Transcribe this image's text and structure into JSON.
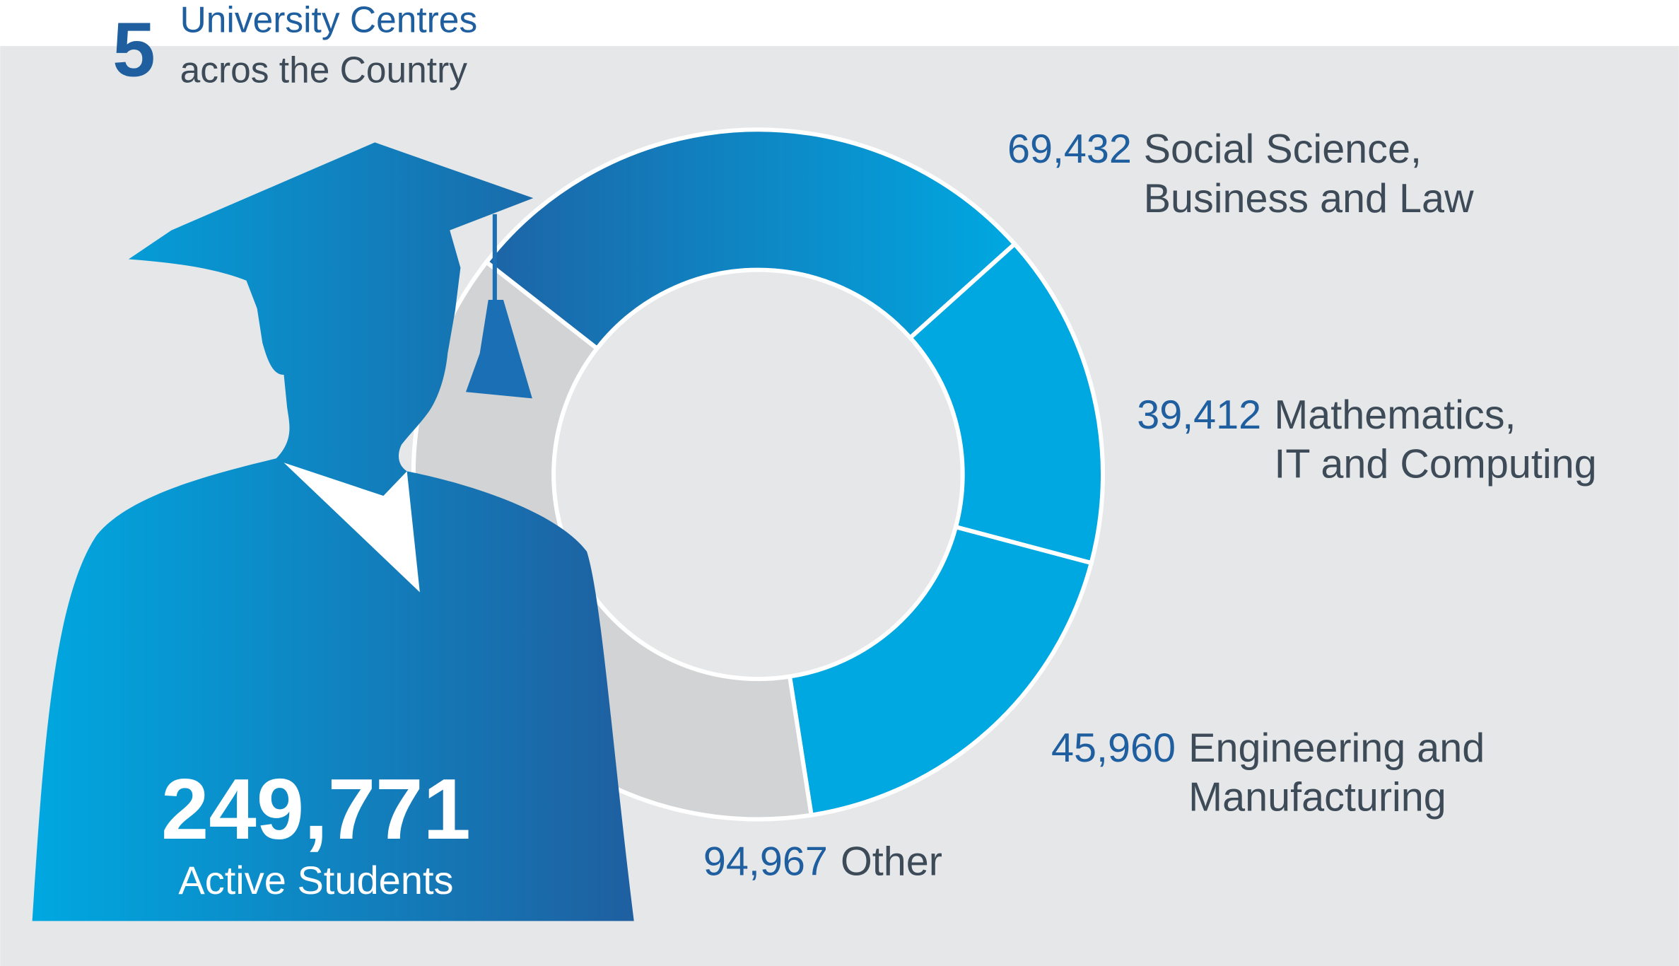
{
  "header": {
    "number": "5",
    "line1": "University Centres",
    "line2": "acros the Country"
  },
  "chart_data": {
    "type": "donut",
    "categories": [
      [
        "Social Science,",
        "Business and Law"
      ],
      [
        "Mathematics,",
        "IT and Computing"
      ],
      [
        "Engineering and",
        "Manufacturing"
      ],
      [
        "Other"
      ]
    ],
    "values": [
      69432,
      39412,
      45960,
      94967
    ],
    "value_labels": [
      "69,432",
      "39,412",
      "45,960",
      "94,967"
    ],
    "colors": [
      "#1d64a6",
      "#00a8e1",
      "#00a8e1",
      "#d1d3d4"
    ],
    "total": {
      "value": 249771,
      "label": "249,771"
    },
    "total_caption": "Active Students"
  }
}
